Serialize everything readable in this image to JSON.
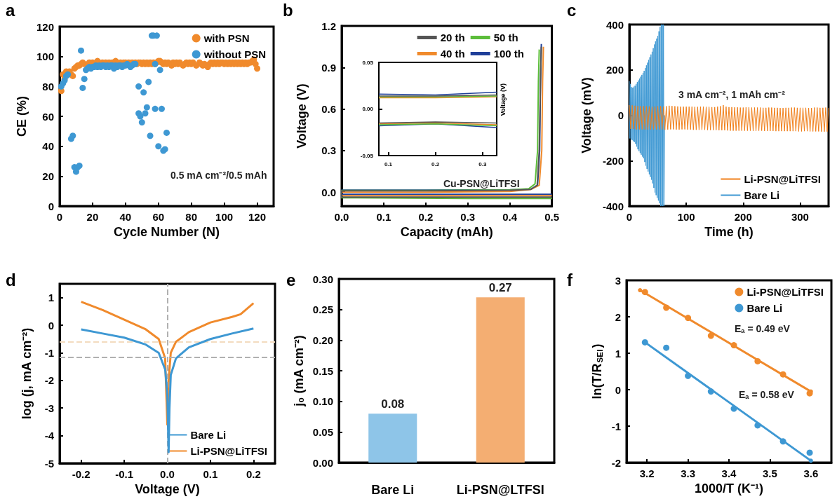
{
  "chart_data": [
    {
      "type": "scatter",
      "title": "a",
      "xlabel": "Cycle Number (N)",
      "ylabel": "CE (%)",
      "xlim": [
        0,
        130
      ],
      "xticks": [
        0,
        20,
        40,
        60,
        80,
        100,
        120
      ],
      "ylim": [
        0,
        120
      ],
      "yticks": [
        0,
        20,
        40,
        60,
        80,
        100,
        120
      ],
      "marker": "circle",
      "legend": "top right",
      "annotations": [
        "0.5 mA cm⁻²/0.5 mAh"
      ],
      "series": [
        {
          "name": "with PSN",
          "color": "#f08a2c",
          "x": [
            1,
            2,
            3,
            4,
            5,
            6,
            7,
            8,
            9,
            10,
            11,
            12,
            13,
            14,
            15,
            16,
            17,
            18,
            19,
            20,
            21,
            22,
            23,
            24,
            25,
            26,
            27,
            28,
            29,
            30,
            31,
            32,
            33,
            34,
            35,
            36,
            37,
            38,
            39,
            40,
            41,
            42,
            43,
            44,
            45,
            46,
            47,
            48,
            49,
            50,
            51,
            52,
            53,
            54,
            55,
            56,
            57,
            58,
            59,
            60,
            61,
            62,
            63,
            64,
            65,
            66,
            67,
            68,
            69,
            70,
            71,
            72,
            73,
            74,
            75,
            76,
            77,
            78,
            79,
            80,
            81,
            82,
            83,
            84,
            85,
            86,
            87,
            88,
            89,
            90,
            91,
            92,
            93,
            94,
            95,
            96,
            97,
            98,
            99,
            100,
            101,
            102,
            103,
            104,
            105,
            106,
            107,
            108,
            109,
            110,
            111,
            112,
            113,
            114,
            115,
            116,
            117,
            118,
            119,
            120
          ],
          "values": [
            77,
            88,
            85,
            90,
            null,
            90,
            88,
            87,
            92,
            93,
            94,
            94,
            95,
            96,
            95,
            null,
            null,
            96,
            null,
            96,
            null,
            null,
            97,
            null,
            null,
            96,
            null,
            96,
            null,
            96,
            null,
            96,
            null,
            97,
            null,
            null,
            96,
            null,
            96,
            96,
            null,
            96,
            null,
            96,
            null,
            96,
            95,
            96,
            96,
            95,
            96,
            95,
            96,
            95,
            96,
            95,
            96,
            95,
            96,
            97,
            97,
            96,
            95,
            96,
            95,
            96,
            null,
            94,
            96,
            95,
            96,
            95,
            96,
            null,
            94,
            95,
            96,
            95,
            96,
            95,
            96,
            null,
            94,
            null,
            96,
            95,
            94,
            95,
            null,
            93,
            95,
            96,
            95,
            96,
            95,
            96,
            95,
            96,
            96,
            95,
            96,
            95,
            96,
            95,
            96,
            95,
            96,
            95,
            96,
            95,
            96,
            95,
            96,
            95,
            96,
            96,
            97,
            98,
            95,
            92
          ]
        },
        {
          "name": "without PSN",
          "color": "#3e98d3",
          "x": [
            1,
            2,
            3,
            4,
            5,
            7,
            8,
            9,
            10,
            11,
            12,
            13,
            14,
            15,
            16,
            17,
            18,
            19,
            20,
            21,
            22,
            23,
            24,
            25,
            26,
            27,
            28,
            29,
            30,
            31,
            32,
            33,
            34,
            35,
            36,
            37,
            38,
            39,
            40,
            41,
            42,
            43,
            44,
            45,
            46,
            48,
            48,
            49,
            50,
            51,
            52,
            53,
            54,
            55,
            56,
            57,
            58,
            58,
            59,
            60,
            61,
            62,
            63,
            64,
            65
          ],
          "values": [
            80,
            82,
            84,
            87,
            88,
            45,
            47,
            26,
            23,
            26,
            27,
            104,
            79,
            85,
            91,
            92,
            93,
            92,
            93,
            93,
            94,
            93,
            94,
            93,
            94,
            94,
            93,
            94,
            93,
            94,
            94,
            92,
            94,
            93,
            94,
            94,
            93,
            94,
            94,
            95,
            null,
            93,
            94,
            95,
            95,
            80,
            62,
            60,
            56,
            76,
            62,
            66,
            83,
            47,
            114,
            114,
            95,
            65,
            114,
            40,
            91,
            65,
            37,
            38,
            49
          ]
        }
      ]
    },
    {
      "type": "line",
      "title": "b",
      "xlabel": "Capacity (mAh)",
      "ylabel": "Voltage (V)",
      "xlim": [
        0,
        0.5
      ],
      "xticks": [
        {
          "value": 0,
          "label": "0.0"
        },
        0.1,
        0.2,
        0.3,
        0.4,
        0.5
      ],
      "ylim": [
        -0.1,
        1.2
      ],
      "yticks": [
        {
          "value": 0,
          "label": "0.0"
        },
        0.3,
        0.6,
        0.9,
        1.2
      ],
      "legend": "top right",
      "annotations": [
        "Cu-PSN@LiTFSI"
      ],
      "series": [
        {
          "name": "20 th",
          "color": "#555555",
          "x": [
            0.5,
            0.3,
            0,
            0,
            0.2,
            0.4,
            0.45,
            0.465,
            0.47,
            0.473,
            0.475
          ],
          "values": [
            -0.035,
            -0.035,
            -0.035,
            0.01,
            0.01,
            0.014,
            0.02,
            0.05,
            0.3,
            0.8,
            1.05
          ]
        },
        {
          "name": "50 th",
          "color": "#5cbd3a",
          "x": [
            0.5,
            0.3,
            0,
            0,
            0.2,
            0.4,
            0.445,
            0.46,
            0.466,
            0.468,
            0.47
          ],
          "values": [
            -0.045,
            -0.045,
            -0.04,
            0.012,
            0.012,
            0.016,
            0.025,
            0.06,
            0.3,
            0.8,
            1.03
          ]
        },
        {
          "name": "40 th",
          "color": "#f08a2c",
          "x": [
            0.5,
            0.3,
            0,
            0,
            0.2,
            0.4,
            0.45,
            0.47,
            0.476,
            0.478,
            0.48
          ],
          "values": [
            -0.025,
            -0.025,
            -0.025,
            0.0,
            0.0,
            0.005,
            0.02,
            0.05,
            0.3,
            0.8,
            1.05
          ]
        },
        {
          "name": "100 th",
          "color": "#1f3f99",
          "x": [
            0.5,
            0.3,
            0,
            0,
            0.2,
            0.4,
            0.45,
            0.466,
            0.471,
            0.473,
            0.475
          ],
          "values": [
            -0.015,
            -0.015,
            -0.015,
            0.015,
            0.015,
            0.017,
            0.022,
            0.05,
            0.3,
            0.8,
            1.07
          ]
        }
      ]
    },
    {
      "type": "line",
      "xlim": [
        0.08,
        0.33
      ],
      "xticks": [
        0.1,
        0.2,
        0.3
      ],
      "ylim": [
        -0.05,
        0.05
      ],
      "yticks": [
        {
          "value": -0.05,
          "label": "-0.05"
        },
        {
          "value": 0,
          "label": "0.00"
        },
        0.05
      ],
      "ylabel": "Voltage (V)",
      "series": [
        {
          "color": "#555555",
          "x": [
            0.08,
            0.2,
            0.33
          ],
          "values": [
            0.014,
            0.014,
            0.015
          ]
        },
        {
          "color": "#555555",
          "x": [
            0.08,
            0.2,
            0.33
          ],
          "values": [
            -0.015,
            -0.014,
            -0.015
          ]
        },
        {
          "color": "#5cbd3a",
          "x": [
            0.08,
            0.2,
            0.33
          ],
          "values": [
            0.013,
            0.013,
            0.014
          ]
        },
        {
          "color": "#5cbd3a",
          "x": [
            0.08,
            0.2,
            0.33
          ],
          "values": [
            -0.017,
            -0.016,
            -0.018
          ]
        },
        {
          "color": "#f08a2c",
          "x": [
            0.08,
            0.2,
            0.33
          ],
          "values": [
            0.012,
            0.012,
            0.013
          ]
        },
        {
          "color": "#f08a2c",
          "x": [
            0.08,
            0.2,
            0.33
          ],
          "values": [
            -0.016,
            -0.015,
            -0.017
          ]
        },
        {
          "color": "#1f3f99",
          "x": [
            0.08,
            0.2,
            0.33
          ],
          "values": [
            0.016,
            0.015,
            0.018
          ]
        },
        {
          "color": "#1f3f99",
          "x": [
            0.08,
            0.2,
            0.33
          ],
          "values": [
            -0.018,
            -0.016,
            -0.02
          ]
        }
      ]
    },
    {
      "type": "line",
      "title": "c",
      "xlabel": "Time (h)",
      "ylabel": "Voltage (mV)",
      "xlim": [
        0,
        350
      ],
      "xticks": [
        0,
        100,
        200,
        300
      ],
      "ylim": [
        -400,
        400
      ],
      "yticks": [
        -400,
        -200,
        0,
        200,
        400
      ],
      "legend": "bottom right",
      "annotations": [
        "3 mA cm⁻², 1 mAh cm⁻²"
      ],
      "series": [
        {
          "name": "Li-PSN@LiTFSI",
          "color": "#f07f1a",
          "x": [
            0,
            2.5,
            5,
            7.5,
            10,
            12.5,
            15,
            17.5,
            20,
            22.5,
            25,
            27.5,
            30,
            32.5,
            35,
            37.5,
            40,
            42.5,
            45,
            47.5,
            50,
            52.5,
            55,
            57.5,
            60,
            62.5,
            65,
            67.5,
            70,
            72.5,
            75,
            77.5,
            80,
            82.5,
            85,
            87.5,
            90,
            92.5,
            95,
            97.5,
            100,
            102.5,
            105,
            107.5,
            110,
            112.5,
            115,
            117.5,
            120,
            122.5,
            125,
            127.5,
            130,
            132.5,
            135,
            137.5,
            140,
            142.5,
            145,
            147.5,
            150,
            152.5,
            155,
            157.5,
            160,
            162.5,
            165,
            167.5,
            170,
            172.5,
            175,
            177.5,
            180,
            182.5,
            185,
            187.5,
            190,
            192.5,
            195,
            197.5,
            200,
            202.5,
            205,
            207.5,
            210,
            212.5,
            215,
            217.5,
            220,
            222.5,
            225,
            227.5,
            230,
            232.5,
            235,
            237.5,
            240,
            242.5,
            245,
            247.5,
            250,
            252.5,
            255,
            257.5,
            260,
            262.5,
            265,
            267.5,
            270,
            272.5,
            275,
            277.5,
            280,
            282.5,
            285,
            287.5,
            290,
            292.5,
            295,
            297.5,
            300,
            302.5,
            305,
            307.5,
            310,
            312.5,
            315,
            317.5,
            320,
            322.5,
            325,
            327.5,
            330,
            332.5,
            335,
            337.5,
            340,
            342.5,
            345,
            347.5,
            350
          ],
          "values": [
            45,
            -60,
            44,
            -60,
            42,
            -62,
            41,
            -62,
            40,
            -62,
            40,
            -63,
            40,
            -63,
            39,
            -63,
            38,
            -62,
            39,
            -62,
            40,
            -62,
            40,
            -62,
            38,
            -64,
            40,
            -63,
            42,
            -62,
            41,
            -62,
            40,
            -63,
            39,
            -63,
            38,
            -62,
            38,
            -62,
            38,
            -63,
            38,
            -63,
            38,
            -64,
            37,
            -64,
            37,
            -64,
            38,
            -64,
            38,
            -64,
            37,
            -65,
            37,
            -65,
            36,
            -65,
            36,
            -65,
            38,
            -66,
            40,
            -66,
            45,
            -66,
            38,
            -67,
            36,
            -68,
            36,
            -68,
            35,
            -68,
            35,
            -68,
            34,
            -68,
            34,
            -68,
            35,
            -68,
            35,
            -68,
            34,
            -69,
            34,
            -69,
            34,
            -68,
            34,
            -68,
            33,
            -69,
            33,
            -69,
            34,
            -69,
            34,
            -69,
            33,
            -70,
            33,
            -70,
            32,
            -70,
            32,
            -70,
            33,
            -70,
            33,
            -70,
            34,
            -70,
            34,
            -70,
            33,
            -71,
            33,
            -71,
            33,
            -70,
            33,
            -70,
            32,
            -71,
            32,
            -71,
            34,
            -71,
            34,
            -71,
            33,
            -72,
            33,
            -72,
            34,
            -72,
            33
          ]
        },
        {
          "name": "Bare Li",
          "color": "#3e98d3",
          "x": [
            0,
            1,
            2,
            3,
            4,
            5,
            6,
            7,
            8,
            9,
            10,
            11,
            12,
            13,
            14,
            15,
            16,
            17,
            18,
            19,
            20,
            21,
            22,
            23,
            24,
            25,
            26,
            27,
            28,
            29,
            30,
            31,
            32,
            33,
            34,
            35,
            36,
            37,
            38,
            39,
            40,
            41,
            42,
            43,
            44,
            45,
            46,
            47,
            48,
            49,
            50,
            51,
            52,
            53,
            54,
            55,
            56,
            57,
            58,
            59,
            60,
            61,
            62
          ],
          "values": [
            150,
            -102,
            138,
            -106,
            124,
            -110,
            122,
            -114,
            126,
            -118,
            130,
            -126,
            138,
            -138,
            146,
            -150,
            154,
            -158,
            162,
            -166,
            170,
            -174,
            178,
            -182,
            186,
            -190,
            196,
            -206,
            208,
            -222,
            220,
            -236,
            232,
            -248,
            244,
            -260,
            256,
            -272,
            268,
            -284,
            280,
            -300,
            296,
            -320,
            312,
            -340,
            326,
            -352,
            338,
            -364,
            350,
            -376,
            370,
            -388,
            390,
            -400,
            400,
            -400,
            400,
            -400,
            400,
            -400,
            0
          ]
        }
      ]
    },
    {
      "type": "line",
      "title": "d",
      "xlabel": "Voltage (V)",
      "ylabel": "log (j, mA cm⁻²)",
      "xlim": [
        -0.25,
        0.25
      ],
      "xticks": [
        -0.2,
        -0.1,
        {
          "value": 0,
          "label": "0.0"
        },
        0.1,
        0.2
      ],
      "ylim": [
        -5,
        1.5
      ],
      "yticks": [
        -5,
        -4,
        -3,
        -2,
        -1,
        0,
        1
      ],
      "legend": "bottom right",
      "ref_lines": [
        {
          "axis": "x",
          "value": 0,
          "color": "#b0b0b0",
          "line_style": "dashed"
        },
        {
          "axis": "y",
          "value": -1.15,
          "color": "#b0b0b0",
          "line_style": "dashed"
        },
        {
          "axis": "y",
          "value": -0.6,
          "color": "#f3dcc0",
          "line_style": "dashed"
        }
      ],
      "series": [
        {
          "name": "Bare Li",
          "color": "#3e98d3",
          "x": [
            -0.2,
            -0.15,
            -0.1,
            -0.05,
            -0.02,
            -0.005,
            0,
            0.003,
            0.005,
            0.008,
            0.02,
            0.05,
            0.1,
            0.15,
            0.2
          ],
          "values": [
            -0.15,
            -0.3,
            -0.45,
            -0.7,
            -1,
            -1.6,
            -2.5,
            -4.6,
            -3,
            -1.8,
            -1.2,
            -0.8,
            -0.5,
            -0.3,
            -0.12
          ]
        },
        {
          "name": "Li-PSN@LiTFSI",
          "color": "#f08a2c",
          "x": [
            -0.2,
            -0.15,
            -0.1,
            -0.05,
            -0.02,
            -0.005,
            0,
            0.003,
            0.008,
            0.02,
            0.05,
            0.1,
            0.15,
            0.17,
            0.2
          ],
          "values": [
            0.85,
            0.55,
            0.2,
            -0.15,
            -0.5,
            -1.2,
            -3.6,
            -2,
            -1,
            -0.6,
            -0.25,
            0.1,
            0.3,
            0.4,
            0.8
          ]
        }
      ]
    },
    {
      "type": "bar",
      "title": "e",
      "ylabel": "j₀ (mA cm⁻²)",
      "categories": [
        "Bare Li",
        "Li-PSN@LTFSI"
      ],
      "values": [
        0.08,
        0.27
      ],
      "colors": [
        "#8ec5e8",
        "#f4ae72"
      ],
      "data_labels": true,
      "ylim": [
        0,
        0.3
      ],
      "yticks": [
        {
          "value": 0,
          "label": "0.00"
        },
        {
          "value": 0.05,
          "label": "0.05"
        },
        {
          "value": 0.1,
          "label": "0.10"
        },
        {
          "value": 0.15,
          "label": "0.15"
        },
        {
          "value": 0.2,
          "label": "0.20"
        },
        {
          "value": 0.25,
          "label": "0.25"
        },
        {
          "value": 0.3,
          "label": "0.30"
        }
      ]
    },
    {
      "type": "scatter",
      "title": "f",
      "xlabel": "1000/T (K⁻¹)",
      "ylabel": "ln(T/R$_{SEI}$)",
      "xlim": [
        3.15,
        3.65
      ],
      "xticks": [
        3.2,
        3.3,
        3.4,
        3.5,
        3.6
      ],
      "ylim": [
        -2,
        3
      ],
      "yticks": [
        -2,
        -1,
        0,
        1,
        2,
        3
      ],
      "marker": "circle",
      "legend": "top right",
      "annotations": [
        "Eₐ = 0.49 eV",
        "Eₐ = 0.58 eV"
      ],
      "series": [
        {
          "name": "Li-PSN@LiTFSI",
          "color": "#f08a2c",
          "x": [
            3.195,
            3.247,
            3.3,
            3.356,
            3.412,
            3.47,
            3.532,
            3.597
          ],
          "values": [
            2.68,
            2.25,
            1.97,
            1.48,
            1.22,
            0.78,
            0.42,
            -0.1
          ]
        },
        {
          "name": "Bare Li",
          "color": "#3e98d3",
          "x": [
            3.195,
            3.247,
            3.3,
            3.356,
            3.412,
            3.47,
            3.532,
            3.597
          ],
          "values": [
            1.3,
            1.15,
            0.38,
            -0.05,
            -0.52,
            -0.98,
            -1.42,
            -1.73
          ]
        },
        {
          "type": "line",
          "color": "#f08a2c",
          "x": [
            3.183,
            3.6
          ],
          "values": [
            2.73,
            -0.05
          ]
        },
        {
          "type": "line",
          "color": "#3e98d3",
          "x": [
            3.195,
            3.6
          ],
          "values": [
            1.3,
            -1.95
          ]
        }
      ]
    }
  ]
}
